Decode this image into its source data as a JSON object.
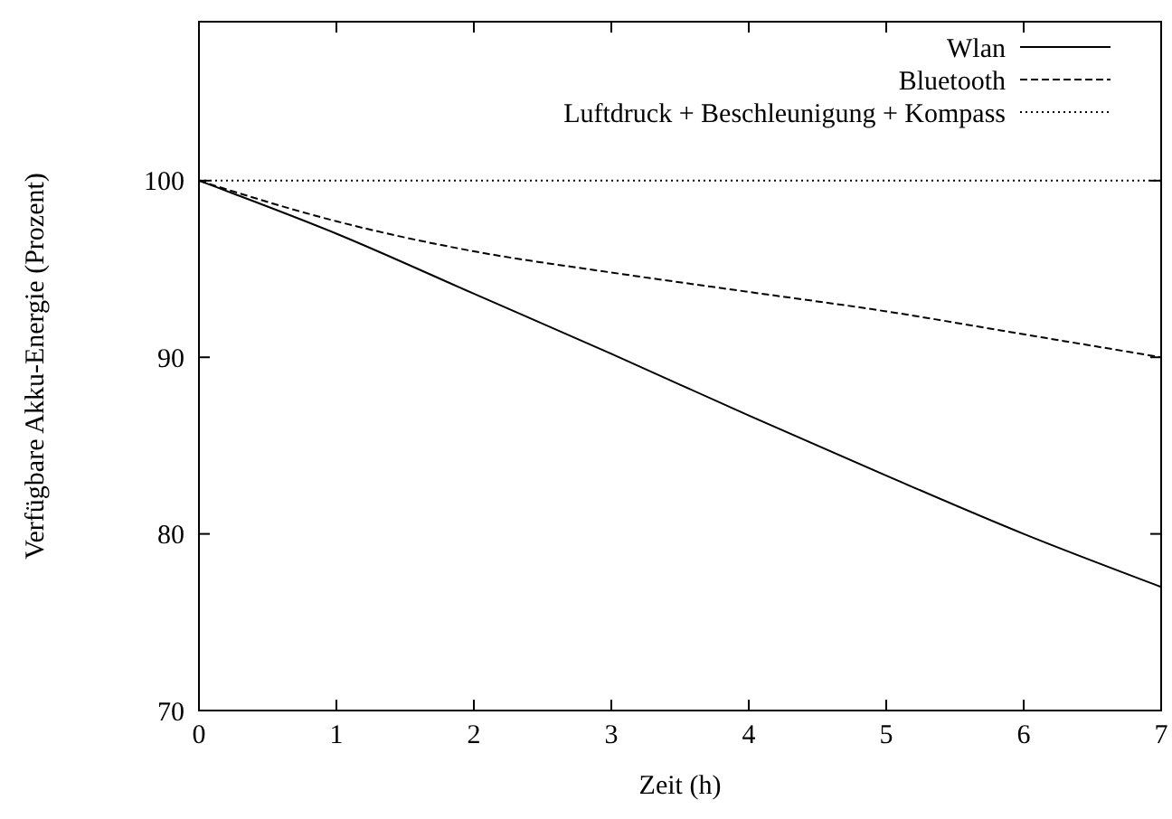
{
  "chart_data": {
    "type": "line",
    "xlabel": "Zeit (h)",
    "ylabel": "Verfügbare Akku-Energie (Prozent)",
    "x": [
      0,
      1,
      2,
      3,
      4,
      5,
      6,
      7
    ],
    "xlim": [
      0,
      7
    ],
    "xticks": [
      0,
      1,
      2,
      3,
      4,
      5,
      6,
      7
    ],
    "ylim": [
      70,
      109
    ],
    "yticks": [
      70,
      80,
      90,
      100
    ],
    "legend": "top right",
    "grid": false,
    "series": [
      {
        "name": "Wlan",
        "color": "#000000",
        "line_style": "solid",
        "values": [
          100,
          97,
          93.6,
          90.2,
          86.7,
          83.3,
          80,
          77
        ]
      },
      {
        "name": "Bluetooth",
        "color": "#000000",
        "line_style": "dashed",
        "values": [
          100,
          97.7,
          96,
          94.8,
          93.7,
          92.6,
          91.3,
          90
        ]
      },
      {
        "name": "Luftdruck + Beschleunigung + Kompass",
        "color": "#000000",
        "line_style": "dotted",
        "values": [
          100,
          100,
          100,
          100,
          100,
          100,
          100,
          100
        ]
      }
    ]
  }
}
